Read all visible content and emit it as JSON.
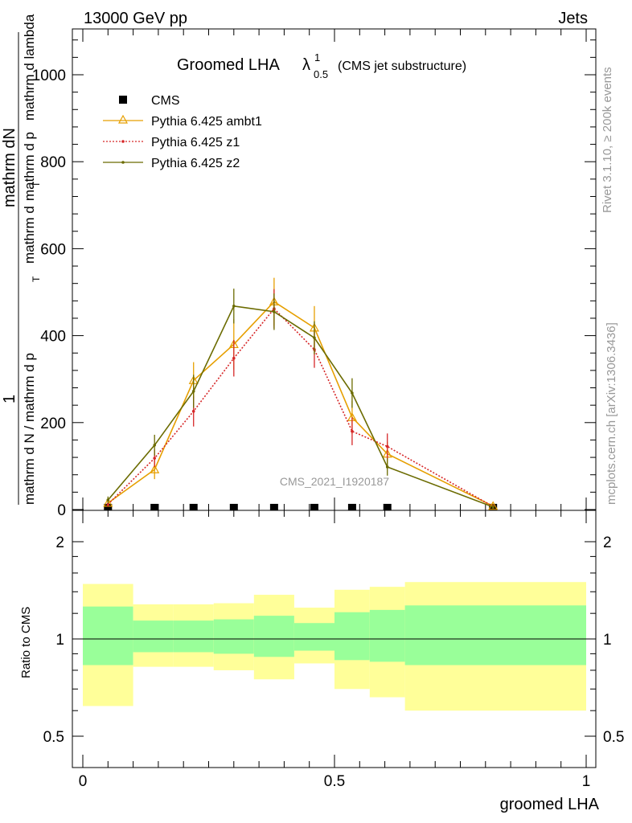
{
  "header": {
    "left": "13000 GeV pp",
    "right": "Jets",
    "side_top": "Rivet 3.1.10, ≥ 200k events",
    "side_bottom": "mcplots.cern.ch [arXiv:1306.3436]",
    "watermark": "CMS_2021_I1920187"
  },
  "chart_data": [
    {
      "type": "line",
      "title_main": "Groomed LHA",
      "title_lambda": "λ",
      "title_sup": "1",
      "title_sub": "0.5",
      "title_suffix": "(CMS jet substructure)",
      "ylabel_num": "1",
      "ylabel_num2": "mathrm dN",
      "ylabel_den": "mathrm d N / mathrm d p",
      "ylabel_den2": "mathrm d p",
      "ylabel_den3": "mathrm d lambda",
      "ylabel_sub": "T",
      "ylabel_mid": "mathrm d",
      "xlim": [
        0,
        1
      ],
      "ylim": [
        0,
        1100
      ],
      "yticks": [
        0,
        200,
        400,
        600,
        800,
        1000
      ],
      "grid": false,
      "legend_position": "top-left",
      "series": [
        {
          "name": "CMS",
          "color": "#000000",
          "marker": "square",
          "x": [
            0.05,
            0.1425,
            0.22,
            0.3,
            0.38,
            0.46,
            0.535,
            0.605,
            0.815
          ],
          "y": [
            2,
            2,
            2,
            2,
            2,
            2,
            2,
            2,
            2
          ]
        },
        {
          "name": "Pythia 6.425 ambt1",
          "color": "#e69f00",
          "marker": "triangle",
          "x": [
            0.05,
            0.1425,
            0.22,
            0.3,
            0.38,
            0.46,
            0.535,
            0.605,
            0.815
          ],
          "y": [
            15,
            92,
            297,
            380,
            478,
            418,
            212,
            128,
            8
          ],
          "err": [
            8,
            22,
            42,
            58,
            55,
            50,
            38,
            28,
            4
          ]
        },
        {
          "name": "Pythia 6.425 z1",
          "color": "#d62728",
          "marker": "dot",
          "x": [
            0.05,
            0.1425,
            0.22,
            0.3,
            0.38,
            0.46,
            0.535,
            0.605,
            0.815
          ],
          "y": [
            12,
            118,
            226,
            348,
            462,
            368,
            180,
            145,
            7
          ],
          "err": [
            6,
            20,
            35,
            42,
            45,
            42,
            32,
            30,
            4
          ]
        },
        {
          "name": "Pythia 6.425 z2",
          "color": "#6b6b00",
          "marker": "dot",
          "x": [
            0.05,
            0.1425,
            0.22,
            0.3,
            0.38,
            0.46,
            0.535,
            0.605,
            0.815
          ],
          "y": [
            22,
            148,
            272,
            468,
            455,
            395,
            268,
            98,
            6
          ],
          "err": [
            8,
            24,
            38,
            40,
            42,
            38,
            34,
            20,
            4
          ]
        }
      ]
    },
    {
      "type": "area",
      "ylabel": "Ratio to CMS",
      "xlabel": "groomed LHA",
      "ylog": true,
      "ylim": [
        0.4,
        2.5
      ],
      "yticks": [
        0.5,
        1,
        2
      ],
      "ytick_labels": [
        "0.5",
        "1",
        "2"
      ],
      "xticks": [
        0,
        0.5,
        1
      ],
      "xtick_labels": [
        "0",
        "0.5",
        "1"
      ],
      "reference": 1,
      "bins": [
        {
          "lo": 0.0,
          "hi": 0.1,
          "yellow": [
            0.62,
            1.48
          ],
          "green": [
            0.83,
            1.26
          ]
        },
        {
          "lo": 0.1,
          "hi": 0.18,
          "yellow": [
            0.82,
            1.28
          ],
          "green": [
            0.91,
            1.14
          ]
        },
        {
          "lo": 0.18,
          "hi": 0.26,
          "yellow": [
            0.82,
            1.28
          ],
          "green": [
            0.91,
            1.14
          ]
        },
        {
          "lo": 0.26,
          "hi": 0.34,
          "yellow": [
            0.8,
            1.29
          ],
          "green": [
            0.9,
            1.15
          ]
        },
        {
          "lo": 0.34,
          "hi": 0.42,
          "yellow": [
            0.75,
            1.37
          ],
          "green": [
            0.88,
            1.18
          ]
        },
        {
          "lo": 0.42,
          "hi": 0.5,
          "yellow": [
            0.84,
            1.25
          ],
          "green": [
            0.92,
            1.12
          ]
        },
        {
          "lo": 0.5,
          "hi": 0.57,
          "yellow": [
            0.7,
            1.42
          ],
          "green": [
            0.86,
            1.21
          ]
        },
        {
          "lo": 0.57,
          "hi": 0.64,
          "yellow": [
            0.66,
            1.45
          ],
          "green": [
            0.85,
            1.23
          ]
        },
        {
          "lo": 0.64,
          "hi": 1.0,
          "yellow": [
            0.6,
            1.5
          ],
          "green": [
            0.83,
            1.27
          ]
        }
      ],
      "band_colors": {
        "yellow": "#ffff99",
        "green": "#99ff99"
      }
    }
  ]
}
